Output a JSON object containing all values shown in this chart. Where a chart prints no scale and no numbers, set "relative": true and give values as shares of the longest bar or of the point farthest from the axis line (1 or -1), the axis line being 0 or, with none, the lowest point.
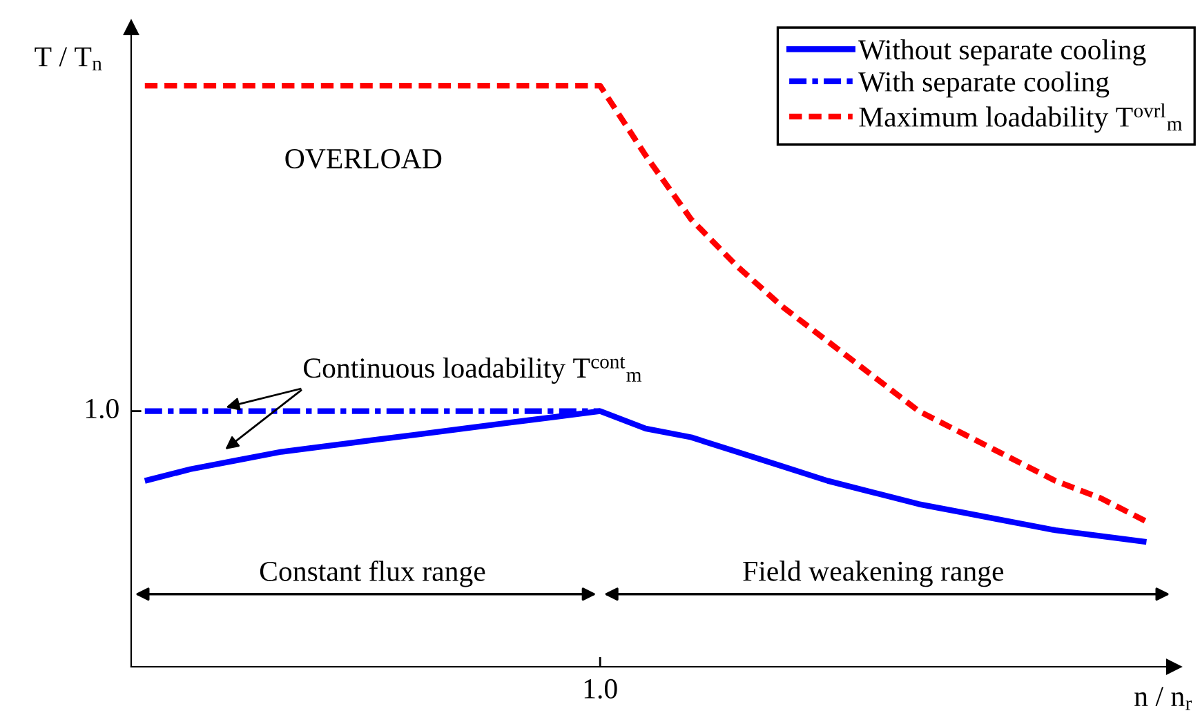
{
  "chart_data": {
    "type": "line",
    "relative": true,
    "xlabel": "n / n$_{r}$",
    "ylabel": "T / T$_{n}$",
    "legend": "top right",
    "categories": [
      null,
      null,
      null,
      null,
      null,
      null,
      null,
      null,
      null,
      null,
      null,
      null,
      null,
      null,
      null,
      null,
      null,
      null,
      null,
      null,
      null,
      null,
      null
    ],
    "series": [
      {
        "name": "Without separate cooling",
        "color": "#0000ff",
        "line_style": "solid",
        "values": [
          0.32,
          0.34,
          0.355,
          0.37,
          0.38,
          0.39,
          0.4,
          0.41,
          0.42,
          0.43,
          0.44,
          0.41,
          0.395,
          0.37,
          0.345,
          0.32,
          0.3,
          0.28,
          0.265,
          0.25,
          0.235,
          0.225,
          0.215
        ]
      },
      {
        "name": "With separate cooling",
        "color": "#0000ff",
        "line_style": "dashdot",
        "values": [
          0.44,
          0.44,
          0.44,
          0.44,
          0.44,
          0.44,
          0.44,
          0.44,
          0.44,
          0.44,
          0.44,
          null,
          null,
          null,
          null,
          null,
          null,
          null,
          null,
          null,
          null,
          null,
          null
        ]
      },
      {
        "name": "Maximum loadability T$^{ovrl}$$_{m}$",
        "color": "#ff0000",
        "line_style": "dashed",
        "values": [
          1,
          1,
          1,
          1,
          1,
          1,
          1,
          1,
          1,
          1,
          1,
          0.88,
          0.77,
          0.69,
          0.62,
          0.56,
          0.5,
          0.44,
          0.4,
          0.36,
          0.32,
          0.29,
          0.25
        ]
      }
    ],
    "annotations": [
      "OVERLOAD",
      "Continuous loadability T$^{cont}$$_{m}$",
      "Constant flux range",
      "Field weakening range",
      "1.0",
      "1.0"
    ]
  }
}
